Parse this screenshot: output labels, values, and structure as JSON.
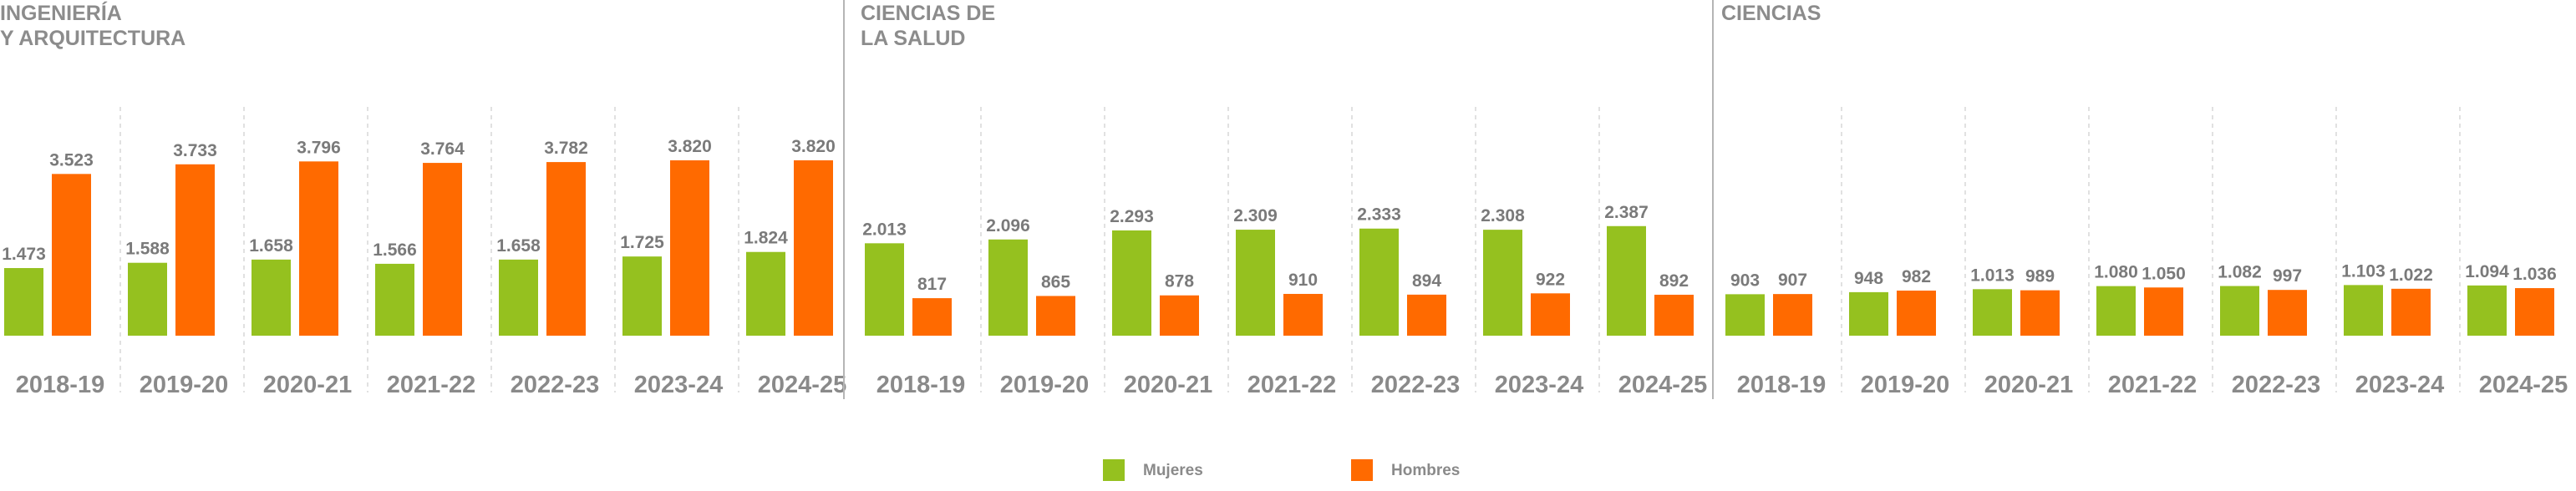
{
  "chart_data": {
    "type": "bar",
    "colors": {
      "mujeres": "#95c11f",
      "hombres": "#ff6a00"
    },
    "legend": {
      "mujeres": "Mujeres",
      "hombres": "Hombres",
      "position": "bottom-center"
    },
    "categories": [
      "2018-19",
      "2019-20",
      "2020-21",
      "2021-22",
      "2022-23",
      "2023-24",
      "2024-25"
    ],
    "panels": [
      {
        "title_lines": [
          "INGENIERÍA",
          "Y ARQUITECTURA"
        ],
        "series": [
          {
            "name": "Mujeres",
            "values": [
              1473,
              1588,
              1658,
              1566,
              1658,
              1725,
              1824
            ],
            "labels": [
              "1.473",
              "1.588",
              "1.658",
              "1.566",
              "1.658",
              "1.725",
              "1.824"
            ]
          },
          {
            "name": "Hombres",
            "values": [
              3523,
              3733,
              3796,
              3764,
              3782,
              3820,
              3820
            ],
            "labels": [
              "3.523",
              "3.733",
              "3.796",
              "3.764",
              "3.782",
              "3.820",
              "3.820"
            ]
          }
        ]
      },
      {
        "title_lines": [
          "CIENCIAS DE",
          "LA SALUD"
        ],
        "series": [
          {
            "name": "Mujeres",
            "values": [
              2013,
              2096,
              2293,
              2309,
              2333,
              2308,
              2387
            ],
            "labels": [
              "2.013",
              "2.096",
              "2.293",
              "2.309",
              "2.333",
              "2.308",
              "2.387"
            ]
          },
          {
            "name": "Hombres",
            "values": [
              817,
              865,
              878,
              910,
              894,
              922,
              892
            ],
            "labels": [
              "817",
              "865",
              "878",
              "910",
              "894",
              "922",
              "892"
            ]
          }
        ]
      },
      {
        "title_lines": [
          "CIENCIAS"
        ],
        "series": [
          {
            "name": "Mujeres",
            "values": [
              903,
              948,
              1013,
              1080,
              1082,
              1103,
              1094
            ],
            "labels": [
              "903",
              "948",
              "1.013",
              "1.080",
              "1.082",
              "1.103",
              "1.094"
            ]
          },
          {
            "name": "Hombres",
            "values": [
              907,
              982,
              989,
              1050,
              997,
              1022,
              1036
            ],
            "labels": [
              "907",
              "982",
              "989",
              "1.050",
              "997",
              "1.022",
              "1.036"
            ]
          }
        ]
      }
    ]
  }
}
